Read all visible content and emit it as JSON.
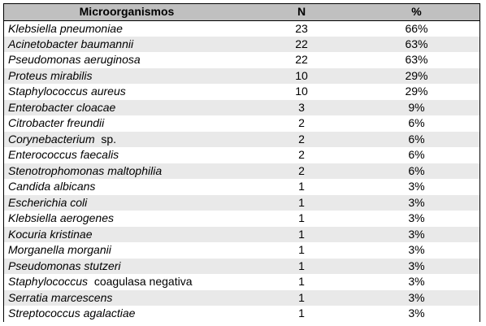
{
  "table": {
    "headers": {
      "organism": "Microorganismos",
      "n": "N",
      "pct": "%"
    },
    "rows": [
      {
        "organism": "Klebsiella pneumoniae",
        "suffix": "",
        "n": "23",
        "pct": "66%"
      },
      {
        "organism": "Acinetobacter baumannii",
        "suffix": "",
        "n": "22",
        "pct": "63%"
      },
      {
        "organism": "Pseudomonas aeruginosa",
        "suffix": "",
        "n": "22",
        "pct": "63%"
      },
      {
        "organism": "Proteus mirabilis",
        "suffix": "",
        "n": "10",
        "pct": "29%"
      },
      {
        "organism": "Staphylococcus aureus",
        "suffix": "",
        "n": "10",
        "pct": "29%"
      },
      {
        "organism": "Enterobacter cloacae",
        "suffix": "",
        "n": "3",
        "pct": "9%"
      },
      {
        "organism": "Citrobacter freundii",
        "suffix": "",
        "n": "2",
        "pct": "6%"
      },
      {
        "organism": "Corynebacterium",
        "suffix": "sp.",
        "n": "2",
        "pct": "6%"
      },
      {
        "organism": "Enterococcus faecalis",
        "suffix": "",
        "n": "2",
        "pct": "6%"
      },
      {
        "organism": "Stenotrophomonas maltophilia",
        "suffix": "",
        "n": "2",
        "pct": "6%"
      },
      {
        "organism": "Candida albicans",
        "suffix": "",
        "n": "1",
        "pct": "3%"
      },
      {
        "organism": "Escherichia coli",
        "suffix": "",
        "n": "1",
        "pct": "3%"
      },
      {
        "organism": "Klebsiella aerogenes",
        "suffix": "",
        "n": "1",
        "pct": "3%"
      },
      {
        "organism": "Kocuria kristinae",
        "suffix": "",
        "n": "1",
        "pct": "3%"
      },
      {
        "organism": "Morganella morganii",
        "suffix": "",
        "n": "1",
        "pct": "3%"
      },
      {
        "organism": "Pseudomonas stutzeri",
        "suffix": "",
        "n": "1",
        "pct": "3%"
      },
      {
        "organism": "Staphylococcus",
        "suffix": "coagulasa negativa",
        "n": "1",
        "pct": "3%"
      },
      {
        "organism": "Serratia marcescens",
        "suffix": "",
        "n": "1",
        "pct": "3%"
      },
      {
        "organism": "Streptococcus agalactiae",
        "suffix": "",
        "n": "1",
        "pct": "3%"
      }
    ]
  }
}
